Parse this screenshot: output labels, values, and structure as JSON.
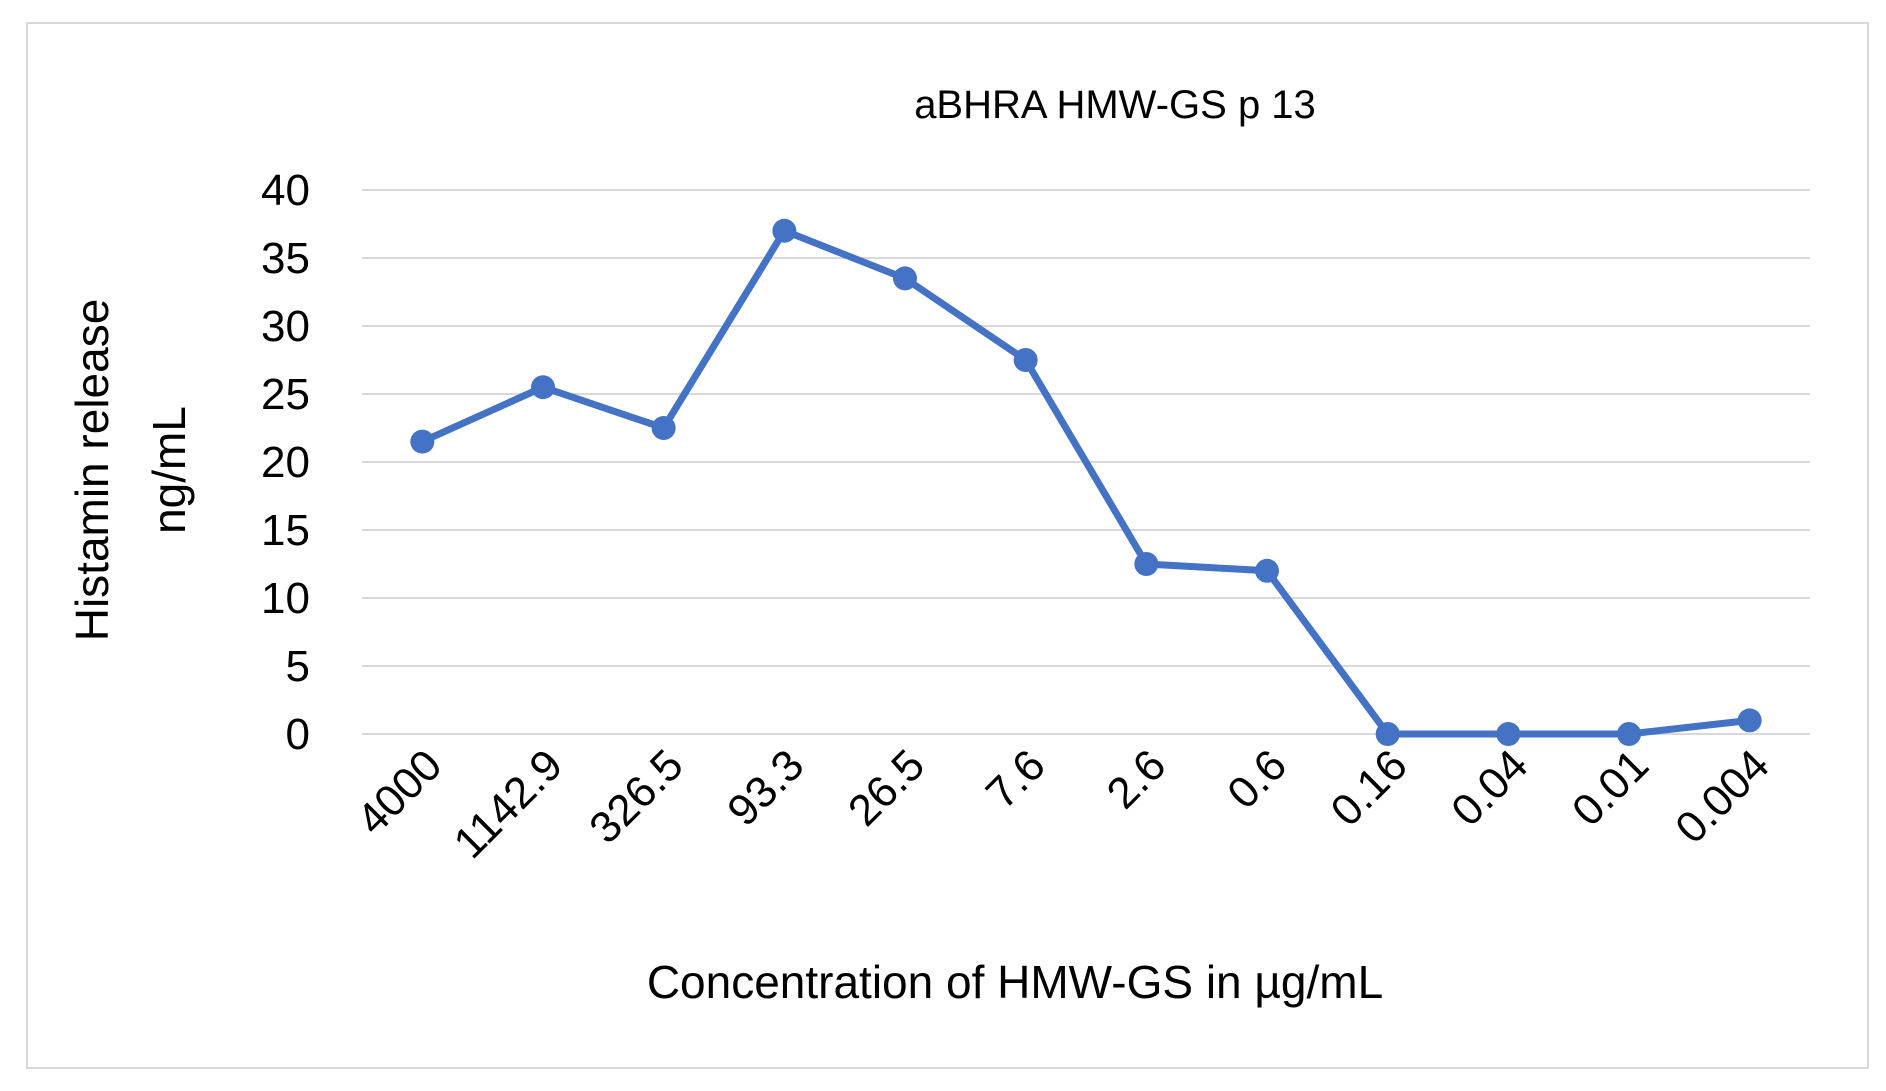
{
  "chart_data": {
    "type": "line",
    "title": "aBHRA HMW-GS p 13",
    "xlabel": "Concentration of HMW-GS in µg/mL",
    "ylabel_lines": [
      "Histamin release",
      "ng/mL"
    ],
    "categories": [
      "4000",
      "1142.9",
      "326.5",
      "93.3",
      "26.5",
      "7.6",
      "2.6",
      "0.6",
      "0.16",
      "0.04",
      "0.01",
      "0.004"
    ],
    "series": [
      {
        "values": [
          21.5,
          25.5,
          22.5,
          37,
          33.5,
          27.5,
          12.5,
          12,
          0,
          0,
          0,
          1
        ],
        "color": "#4472c4"
      }
    ],
    "ylim": [
      0,
      40
    ],
    "yticks": [
      0,
      5,
      10,
      15,
      20,
      25,
      30,
      35,
      40
    ],
    "grid": true,
    "legend": "none",
    "marker": "circle"
  }
}
